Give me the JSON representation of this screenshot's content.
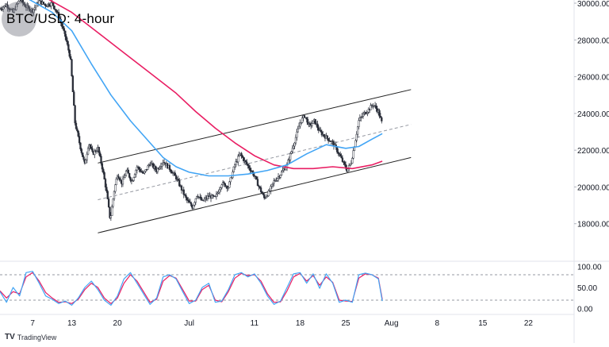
{
  "title": "BTC/USD: 4-hour",
  "footer": {
    "brand_mark": "TV",
    "brand": "TradingView"
  },
  "colors": {
    "candle": "#2a2e39",
    "sma_fast": "#42a5f5",
    "sma_slow": "#e91e63",
    "channel": "#222222",
    "channel_mid": "#9598a1",
    "stoch_k": "#42a5f5",
    "stoch_d": "#e91e63"
  },
  "chart_data": [
    {
      "type": "candlestick",
      "x_axis": {
        "unit": "day index (0 = Jun 1)",
        "ticks": [
          {
            "label": "7",
            "x": 6
          },
          {
            "label": "13",
            "x": 12
          },
          {
            "label": "20",
            "x": 19
          },
          {
            "label": "Jul",
            "x": 30
          },
          {
            "label": "11",
            "x": 40
          },
          {
            "label": "18",
            "x": 47
          },
          {
            "label": "25",
            "x": 54
          },
          {
            "label": "Aug",
            "x": 61
          },
          {
            "label": "8",
            "x": 68
          },
          {
            "label": "15",
            "x": 75
          },
          {
            "label": "22",
            "x": 82
          }
        ],
        "xlim": [
          1,
          89
        ]
      },
      "y_axis": {
        "position": "right",
        "ticks": [
          "30000.00",
          "28000.00",
          "26000.00",
          "24000.00",
          "22000.00",
          "20000.00",
          "18000.00"
        ],
        "ylim": [
          16000,
          30000
        ]
      },
      "price": [
        [
          1.0,
          29700
        ],
        [
          2.0,
          29900
        ],
        [
          3.0,
          29500
        ],
        [
          4.0,
          30200
        ],
        [
          5.0,
          29800
        ],
        [
          6.0,
          29600
        ],
        [
          7.0,
          30100
        ],
        [
          8.0,
          29900
        ],
        [
          9.0,
          30000
        ],
        [
          10.0,
          29300
        ],
        [
          11.0,
          28200
        ],
        [
          11.8,
          27000
        ],
        [
          12.5,
          23500
        ],
        [
          13.3,
          22200
        ],
        [
          14.0,
          21200
        ],
        [
          14.6,
          22400
        ],
        [
          15.2,
          21800
        ],
        [
          16.0,
          22100
        ],
        [
          16.7,
          21000
        ],
        [
          17.3,
          19800
        ],
        [
          17.9,
          18200
        ],
        [
          18.5,
          19800
        ],
        [
          19.0,
          20700
        ],
        [
          19.7,
          20200
        ],
        [
          20.4,
          20900
        ],
        [
          21.2,
          20300
        ],
        [
          22.0,
          21100
        ],
        [
          23.0,
          20700
        ],
        [
          24.0,
          21300
        ],
        [
          25.0,
          20900
        ],
        [
          26.0,
          21400
        ],
        [
          27.0,
          21000
        ],
        [
          28.0,
          20500
        ],
        [
          28.8,
          19900
        ],
        [
          29.6,
          19300
        ],
        [
          30.5,
          18900
        ],
        [
          31.2,
          19600
        ],
        [
          32.0,
          19200
        ],
        [
          33.0,
          19500
        ],
        [
          34.0,
          19400
        ],
        [
          35.0,
          20200
        ],
        [
          36.0,
          20000
        ],
        [
          37.0,
          21200
        ],
        [
          37.8,
          21800
        ],
        [
          38.5,
          21400
        ],
        [
          39.3,
          21000
        ],
        [
          40.0,
          20600
        ],
        [
          40.7,
          20000
        ],
        [
          41.5,
          19400
        ],
        [
          42.2,
          19700
        ],
        [
          43.0,
          20300
        ],
        [
          44.0,
          20700
        ],
        [
          45.0,
          21200
        ],
        [
          46.0,
          22300
        ],
        [
          47.0,
          23500
        ],
        [
          47.7,
          23900
        ],
        [
          48.4,
          23300
        ],
        [
          49.2,
          23600
        ],
        [
          50.0,
          23000
        ],
        [
          51.0,
          22700
        ],
        [
          52.0,
          22400
        ],
        [
          52.8,
          21900
        ],
        [
          53.5,
          21400
        ],
        [
          54.2,
          20900
        ],
        [
          54.8,
          21300
        ],
        [
          55.4,
          22400
        ],
        [
          56.0,
          23600
        ],
        [
          56.8,
          24000
        ],
        [
          57.5,
          24200
        ],
        [
          58.2,
          24500
        ],
        [
          59.0,
          24100
        ],
        [
          59.6,
          23400
        ]
      ],
      "sma_100": [
        [
          1,
          30800
        ],
        [
          5,
          30300
        ],
        [
          9,
          29500
        ],
        [
          12,
          28500
        ],
        [
          15,
          26700
        ],
        [
          18,
          25000
        ],
        [
          21,
          23600
        ],
        [
          24,
          22400
        ],
        [
          26,
          21600
        ],
        [
          28,
          21100
        ],
        [
          30,
          20800
        ],
        [
          33,
          20600
        ],
        [
          36,
          20600
        ],
        [
          39,
          20700
        ],
        [
          42,
          20900
        ],
        [
          45,
          21200
        ],
        [
          48,
          21800
        ],
        [
          51,
          22300
        ],
        [
          54,
          22100
        ],
        [
          56,
          22200
        ],
        [
          58,
          22600
        ],
        [
          59.6,
          22900
        ]
      ],
      "sma_200": [
        [
          1,
          30900
        ],
        [
          8,
          30300
        ],
        [
          12,
          29500
        ],
        [
          16,
          28400
        ],
        [
          20,
          27300
        ],
        [
          24,
          26200
        ],
        [
          28,
          25100
        ],
        [
          31,
          24100
        ],
        [
          34,
          23200
        ],
        [
          37,
          22400
        ],
        [
          40,
          21700
        ],
        [
          43,
          21200
        ],
        [
          46,
          21000
        ],
        [
          49,
          21000
        ],
        [
          52,
          21100
        ],
        [
          55,
          21000
        ],
        [
          58,
          21200
        ],
        [
          59.6,
          21400
        ]
      ],
      "channel": {
        "upper": [
          [
            16.0,
            21300
          ],
          [
            64.0,
            25300
          ]
        ],
        "middle": [
          [
            16.0,
            19300
          ],
          [
            64.0,
            23400
          ]
        ],
        "lower": [
          [
            16.0,
            17500
          ],
          [
            64.0,
            21600
          ]
        ]
      }
    },
    {
      "type": "line",
      "indicator": "stochastic",
      "y_axis": {
        "position": "right",
        "ticks": [
          "100.00",
          "50.00",
          "0.00"
        ],
        "ylim": [
          -10,
          110
        ]
      },
      "levels": [
        80,
        20
      ],
      "k": [
        [
          1,
          40
        ],
        [
          2,
          15
        ],
        [
          3,
          50
        ],
        [
          4,
          30
        ],
        [
          5,
          85
        ],
        [
          6,
          88
        ],
        [
          7,
          60
        ],
        [
          8,
          30
        ],
        [
          9,
          22
        ],
        [
          10,
          12
        ],
        [
          11,
          18
        ],
        [
          12,
          8
        ],
        [
          13,
          25
        ],
        [
          14,
          50
        ],
        [
          15,
          65
        ],
        [
          16,
          45
        ],
        [
          17,
          20
        ],
        [
          18,
          8
        ],
        [
          19,
          30
        ],
        [
          20,
          70
        ],
        [
          21,
          85
        ],
        [
          22,
          60
        ],
        [
          23,
          35
        ],
        [
          24,
          10
        ],
        [
          25,
          25
        ],
        [
          26,
          75
        ],
        [
          27,
          80
        ],
        [
          28,
          70
        ],
        [
          29,
          40
        ],
        [
          30,
          12
        ],
        [
          31,
          20
        ],
        [
          32,
          50
        ],
        [
          33,
          60
        ],
        [
          34,
          15
        ],
        [
          35,
          18
        ],
        [
          36,
          45
        ],
        [
          37,
          80
        ],
        [
          38,
          85
        ],
        [
          39,
          75
        ],
        [
          40,
          82
        ],
        [
          41,
          60
        ],
        [
          42,
          30
        ],
        [
          43,
          10
        ],
        [
          44,
          18
        ],
        [
          45,
          50
        ],
        [
          46,
          82
        ],
        [
          47,
          85
        ],
        [
          48,
          60
        ],
        [
          49,
          82
        ],
        [
          50,
          48
        ],
        [
          51,
          82
        ],
        [
          52,
          60
        ],
        [
          53,
          15
        ],
        [
          54,
          20
        ],
        [
          55,
          15
        ],
        [
          56,
          80
        ],
        [
          57,
          84
        ],
        [
          58,
          80
        ],
        [
          59,
          70
        ],
        [
          59.6,
          18
        ]
      ],
      "d": [
        [
          1,
          42
        ],
        [
          2,
          25
        ],
        [
          3,
          40
        ],
        [
          4,
          35
        ],
        [
          5,
          75
        ],
        [
          6,
          85
        ],
        [
          7,
          65
        ],
        [
          8,
          38
        ],
        [
          9,
          25
        ],
        [
          10,
          15
        ],
        [
          11,
          16
        ],
        [
          12,
          12
        ],
        [
          13,
          22
        ],
        [
          14,
          45
        ],
        [
          15,
          60
        ],
        [
          16,
          50
        ],
        [
          17,
          25
        ],
        [
          18,
          12
        ],
        [
          19,
          25
        ],
        [
          20,
          60
        ],
        [
          21,
          80
        ],
        [
          22,
          65
        ],
        [
          23,
          40
        ],
        [
          24,
          15
        ],
        [
          25,
          22
        ],
        [
          26,
          65
        ],
        [
          27,
          78
        ],
        [
          28,
          72
        ],
        [
          29,
          45
        ],
        [
          30,
          18
        ],
        [
          31,
          18
        ],
        [
          32,
          45
        ],
        [
          33,
          55
        ],
        [
          34,
          20
        ],
        [
          35,
          16
        ],
        [
          36,
          40
        ],
        [
          37,
          72
        ],
        [
          38,
          83
        ],
        [
          39,
          78
        ],
        [
          40,
          80
        ],
        [
          41,
          65
        ],
        [
          42,
          35
        ],
        [
          43,
          15
        ],
        [
          44,
          16
        ],
        [
          45,
          42
        ],
        [
          46,
          75
        ],
        [
          47,
          83
        ],
        [
          48,
          65
        ],
        [
          49,
          78
        ],
        [
          50,
          55
        ],
        [
          51,
          75
        ],
        [
          52,
          62
        ],
        [
          53,
          20
        ],
        [
          54,
          18
        ],
        [
          55,
          17
        ],
        [
          56,
          72
        ],
        [
          57,
          82
        ],
        [
          58,
          80
        ],
        [
          59,
          72
        ],
        [
          59.6,
          22
        ]
      ]
    }
  ]
}
